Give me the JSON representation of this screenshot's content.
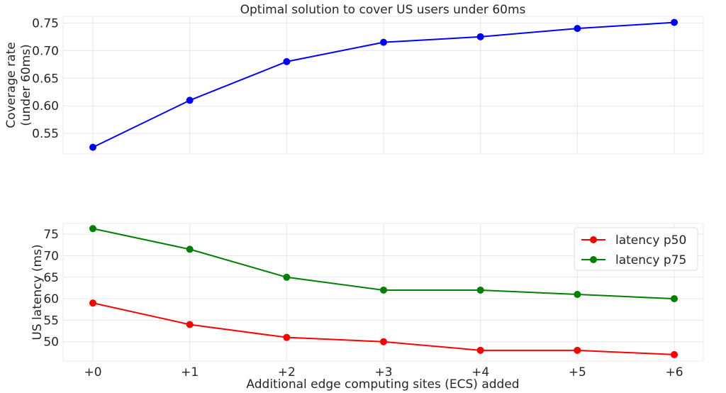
{
  "chart_data": [
    {
      "type": "line",
      "title": "Optimal solution to cover US users under 60ms",
      "ylabel_lines": [
        "Coverage rate",
        "(under 60ms)"
      ],
      "xlabel": "",
      "categories": [
        "+0",
        "+1",
        "+2",
        "+3",
        "+4",
        "+5",
        "+6"
      ],
      "ylim": [
        0.513,
        0.762
      ],
      "yticks": [
        0.55,
        0.6,
        0.65,
        0.7,
        0.75
      ],
      "ytick_labels": [
        "0.55",
        "0.60",
        "0.65",
        "0.70",
        "0.75"
      ],
      "grid": true,
      "series": [
        {
          "color": "#0000ff",
          "values": [
            0.525,
            0.61,
            0.68,
            0.715,
            0.725,
            0.74,
            0.751
          ]
        }
      ]
    },
    {
      "type": "line",
      "title": "",
      "ylabel": "US latency (ms)",
      "xlabel": "Additional edge computing sites (ECS) added",
      "categories": [
        "+0",
        "+1",
        "+2",
        "+3",
        "+4",
        "+5",
        "+6"
      ],
      "ylim": [
        45.5,
        77.5
      ],
      "yticks": [
        50,
        55,
        60,
        65,
        70,
        75
      ],
      "ytick_labels": [
        "50",
        "55",
        "60",
        "65",
        "70",
        "75"
      ],
      "grid": true,
      "legend": "top-right",
      "series": [
        {
          "name": "latency p50",
          "color": "#ff0000",
          "values": [
            59,
            54,
            51,
            50,
            48,
            48,
            47
          ]
        },
        {
          "name": "latency p75",
          "color": "#008000",
          "values": [
            76.3,
            71.5,
            65,
            62,
            62,
            61,
            60
          ]
        }
      ]
    }
  ]
}
